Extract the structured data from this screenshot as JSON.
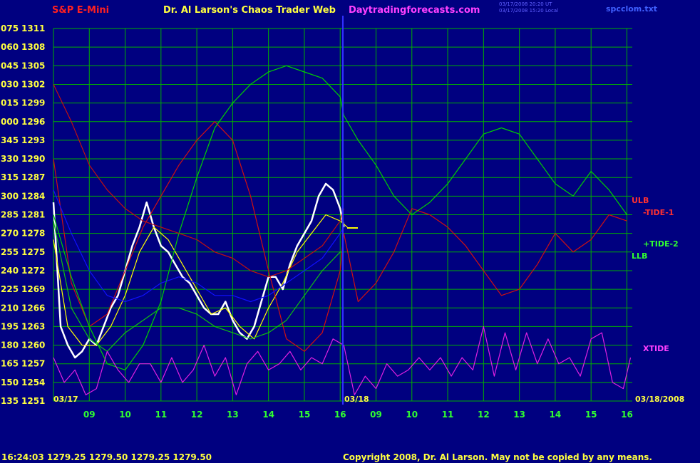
{
  "header": {
    "instrument": "S&P E-Mini",
    "title": "Dr. Al Larson's Chaos Trader Web",
    "site": "Daytradingforecasts.com",
    "timestamp_1": "03/17/2008 20:20 UT",
    "timestamp_2": "03/17/2008 15:20 Local",
    "file": "spcclom.txt"
  },
  "footer": {
    "quote": "16:24:03  1279.25 1279.50 1279.25 1279.50",
    "copyright": "Copyright 2008, Dr. Al Larson. May not be copied by any means."
  },
  "date_labels": {
    "start": "03/17",
    "mid": "03/18",
    "end": "03/18/2008"
  },
  "line_labels": {
    "ulb": "ULB",
    "tide1": "-TIDE-1",
    "tide2": "+TIDE-2",
    "llb": "LLB",
    "xtide": "XTIDE"
  },
  "colors": {
    "background": "#000080",
    "grid": "#00b000",
    "price_white": "#ffffff",
    "price_red": "#ff0000",
    "ma_yellow": "#ffff00",
    "tide1": "#d01010",
    "tide2": "#00d000",
    "band_red": "#c01010",
    "band_green": "#10c010",
    "band_blue": "#1010ff",
    "xtide": "#e020e0",
    "separator": "#3030ff"
  },
  "chart_data": {
    "type": "line",
    "ylim": [
      1251,
      1311
    ],
    "y_ticks": [
      {
        "left": "075",
        "right": "1311"
      },
      {
        "left": "060",
        "right": "1308"
      },
      {
        "left": "045",
        "right": "1305"
      },
      {
        "left": "030",
        "right": "1302"
      },
      {
        "left": "015",
        "right": "1299"
      },
      {
        "left": "000",
        "right": "1296"
      },
      {
        "left": "345",
        "right": "1293"
      },
      {
        "left": "330",
        "right": "1290"
      },
      {
        "left": "315",
        "right": "1287"
      },
      {
        "left": "300",
        "right": "1284"
      },
      {
        "left": "285",
        "right": "1281"
      },
      {
        "left": "270",
        "right": "1278"
      },
      {
        "left": "255",
        "right": "1275"
      },
      {
        "left": "240",
        "right": "1272"
      },
      {
        "left": "225",
        "right": "1269"
      },
      {
        "left": "210",
        "right": "1266"
      },
      {
        "left": "195",
        "right": "1263"
      },
      {
        "left": "180",
        "right": "1260"
      },
      {
        "left": "165",
        "right": "1257"
      },
      {
        "left": "150",
        "right": "1254"
      },
      {
        "left": "135",
        "right": "1251"
      }
    ],
    "x_ticks": [
      "09",
      "10",
      "11",
      "12",
      "13",
      "14",
      "15",
      "16",
      "09",
      "10",
      "11",
      "12",
      "13",
      "14",
      "15",
      "16"
    ],
    "x_domain": [
      8,
      24.15
    ],
    "series": [
      {
        "name": "price",
        "color": "#ffffff",
        "x": [
          8.0,
          8.2,
          8.4,
          8.6,
          8.8,
          9.0,
          9.2,
          9.4,
          9.6,
          9.8,
          10.0,
          10.2,
          10.4,
          10.6,
          10.7,
          10.8,
          11.0,
          11.2,
          11.4,
          11.6,
          11.8,
          12.0,
          12.2,
          12.4,
          12.6,
          12.8,
          13.0,
          13.2,
          13.4,
          13.6,
          13.8,
          14.0,
          14.2,
          14.4,
          14.6,
          14.8,
          15.0,
          15.2,
          15.4,
          15.6,
          15.8,
          16.0,
          16.1
        ],
        "y": [
          1283,
          1263,
          1260,
          1258,
          1259,
          1261,
          1260,
          1263,
          1266,
          1268,
          1272,
          1276,
          1279,
          1283,
          1281,
          1279,
          1276,
          1275,
          1273,
          1271,
          1270,
          1268,
          1266,
          1265,
          1265,
          1267,
          1264,
          1262,
          1261,
          1263,
          1267,
          1271,
          1271,
          1269,
          1273,
          1276,
          1278,
          1280,
          1284,
          1286,
          1285,
          1282,
          1279
        ]
      },
      {
        "name": "ma",
        "color": "#ffff00",
        "x": [
          8.0,
          8.4,
          8.8,
          9.2,
          9.6,
          10.0,
          10.4,
          10.8,
          11.2,
          11.6,
          12.0,
          12.4,
          12.8,
          13.2,
          13.6,
          14.0,
          14.4,
          14.8,
          15.2,
          15.6,
          16.0,
          16.2
        ],
        "y": [
          1277,
          1263,
          1260,
          1260,
          1263,
          1268,
          1275,
          1279,
          1277,
          1273,
          1269,
          1265,
          1266,
          1263,
          1261,
          1266,
          1270,
          1275,
          1278,
          1281,
          1280,
          1279
        ]
      },
      {
        "name": "TIDE-1",
        "color": "#d01010",
        "x": [
          8.0,
          8.5,
          9.0,
          9.5,
          10.0,
          10.5,
          11.0,
          11.5,
          12.0,
          12.5,
          13.0,
          13.5,
          14.0,
          14.5,
          15.0,
          15.5,
          16.0,
          16.1,
          16.5,
          17.0,
          17.5,
          18.0,
          18.5,
          19.0,
          19.5,
          20.0,
          20.5,
          21.0,
          21.5,
          22.0,
          22.5,
          23.0,
          23.5,
          24.0
        ],
        "y": [
          1290,
          1270,
          1263,
          1265,
          1272,
          1279,
          1284,
          1289,
          1293,
          1296,
          1293,
          1284,
          1272,
          1261,
          1259,
          1262,
          1272,
          1278,
          1267,
          1270,
          1275,
          1282,
          1281,
          1279,
          1276,
          1272,
          1268,
          1269,
          1273,
          1278,
          1275,
          1277,
          1281,
          1280
        ]
      },
      {
        "name": "TIDE-2",
        "color": "#00d000",
        "x": [
          8.0,
          8.5,
          9.0,
          9.5,
          10.0,
          10.5,
          11.0,
          11.5,
          12.0,
          12.5,
          13.0,
          13.5,
          14.0,
          14.5,
          15.0,
          15.5,
          16.0,
          16.1,
          16.5,
          17.0,
          17.5,
          18.0,
          18.5,
          19.0,
          19.5,
          20.0,
          20.5,
          21.0,
          21.5,
          22.0,
          22.5,
          23.0,
          23.5,
          24.0
        ],
        "y": [
          1281,
          1271,
          1263,
          1257,
          1256,
          1260,
          1267,
          1278,
          1287,
          1295,
          1299,
          1302,
          1304,
          1305,
          1304,
          1303,
          1300,
          1297,
          1293,
          1289,
          1284,
          1281,
          1283,
          1286,
          1290,
          1294,
          1295,
          1294,
          1290,
          1286,
          1284,
          1288,
          1285,
          1281
        ]
      },
      {
        "name": "ULB",
        "color": "#c01010",
        "x": [
          8.0,
          8.5,
          9.0,
          9.5,
          10.0,
          10.5,
          11.0,
          11.5,
          12.0,
          12.5,
          13.0,
          13.5,
          14.0,
          14.5,
          15.0,
          15.5,
          16.0,
          16.1
        ],
        "y": [
          1302,
          1296,
          1289,
          1285,
          1282,
          1280,
          1279,
          1278,
          1277,
          1275,
          1274,
          1272,
          1271,
          1272,
          1274,
          1276,
          1280,
          1282
        ]
      },
      {
        "name": "LLB",
        "color": "#10c010",
        "x": [
          8.0,
          8.5,
          9.0,
          9.5,
          10.0,
          10.5,
          11.0,
          11.5,
          12.0,
          12.5,
          13.0,
          13.5,
          14.0,
          14.5,
          15.0,
          15.5,
          16.0,
          16.1
        ],
        "y": [
          1280,
          1266,
          1261,
          1259,
          1262,
          1264,
          1266,
          1266,
          1265,
          1263,
          1262,
          1261,
          1262,
          1264,
          1268,
          1272,
          1275,
          1275
        ]
      },
      {
        "name": "mid band",
        "color": "#1010ff",
        "x": [
          8.0,
          8.5,
          9.0,
          9.5,
          10.0,
          10.5,
          11.0,
          11.5,
          12.0,
          12.5,
          13.0,
          13.5,
          14.0,
          14.5,
          15.0,
          15.5,
          16.0,
          16.1
        ],
        "y": [
          1285,
          1278,
          1272,
          1268,
          1267,
          1268,
          1270,
          1271,
          1270,
          1268,
          1268,
          1267,
          1268,
          1270,
          1272,
          1274,
          1278,
          1279
        ]
      },
      {
        "name": "XTIDE",
        "color": "#e020e0",
        "x": [
          8.0,
          8.3,
          8.6,
          8.9,
          9.2,
          9.5,
          9.8,
          10.1,
          10.4,
          10.7,
          11.0,
          11.3,
          11.6,
          11.9,
          12.2,
          12.5,
          12.8,
          13.1,
          13.4,
          13.7,
          14.0,
          14.3,
          14.6,
          14.9,
          15.2,
          15.5,
          15.8,
          16.1,
          16.4,
          16.7,
          17.0,
          17.3,
          17.6,
          17.9,
          18.2,
          18.5,
          18.8,
          19.1,
          19.4,
          19.7,
          20.0,
          20.3,
          20.6,
          20.9,
          21.2,
          21.5,
          21.8,
          22.1,
          22.4,
          22.7,
          23.0,
          23.3,
          23.6,
          23.9,
          24.1
        ],
        "y": [
          1258,
          1254,
          1256,
          1252,
          1253,
          1259,
          1256,
          1254,
          1257,
          1257,
          1254,
          1258,
          1254,
          1256,
          1260,
          1255,
          1258,
          1252,
          1257,
          1259,
          1256,
          1257,
          1259,
          1256,
          1258,
          1257,
          1261,
          1260,
          1252,
          1255,
          1253,
          1257,
          1255,
          1256,
          1258,
          1256,
          1258,
          1255,
          1258,
          1256,
          1263,
          1255,
          1262,
          1256,
          1262,
          1257,
          1261,
          1257,
          1258,
          1255,
          1261,
          1262,
          1254,
          1253,
          1258
        ]
      }
    ]
  }
}
